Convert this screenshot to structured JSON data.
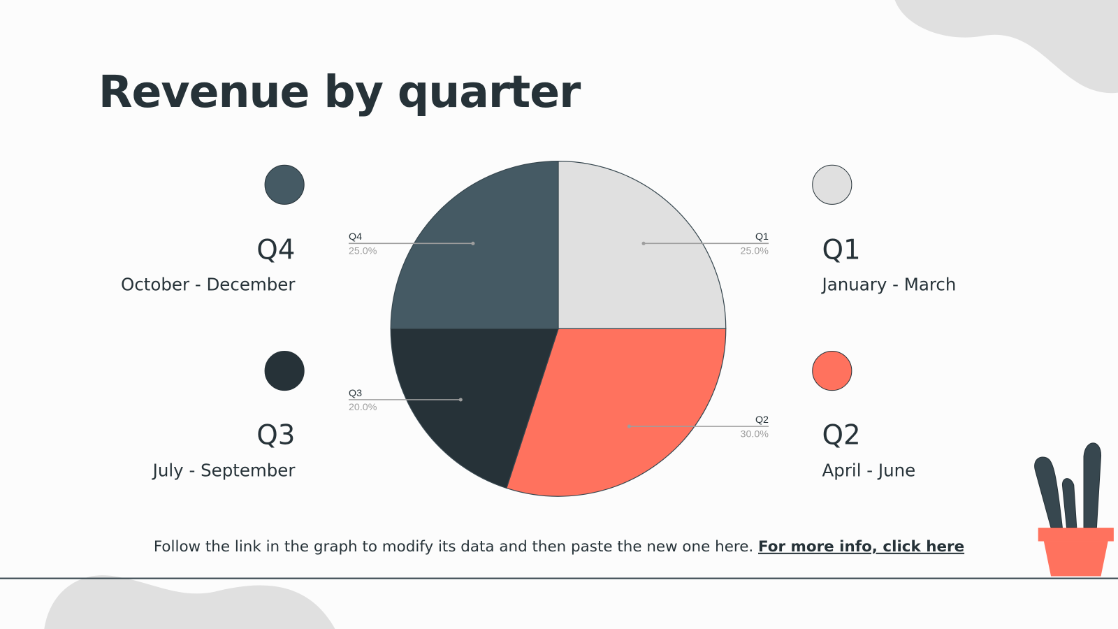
{
  "title": "Revenue by quarter",
  "chart_data": {
    "type": "pie",
    "title": "Revenue by quarter",
    "categories": [
      "Q1",
      "Q2",
      "Q3",
      "Q4"
    ],
    "values": [
      25.0,
      30.0,
      20.0,
      25.0
    ],
    "labels": [
      "25.0%",
      "30.0%",
      "20.0%",
      "25.0%"
    ],
    "colors": [
      "#e0e0e0",
      "#ff725e",
      "#263238",
      "#455a64"
    ],
    "start_angle": "top, clockwise"
  },
  "legend": [
    {
      "name": "Q1",
      "sub": "January - March",
      "color": "#e0e0e0"
    },
    {
      "name": "Q2",
      "sub": "April - June",
      "color": "#ff725e"
    },
    {
      "name": "Q3",
      "sub": "July - September",
      "color": "#263238"
    },
    {
      "name": "Q4",
      "sub": "October - December",
      "color": "#455a64"
    }
  ],
  "footer": {
    "text": "Follow the link in the graph to modify its data and then paste the new one here. ",
    "link": "For more info, click here"
  }
}
